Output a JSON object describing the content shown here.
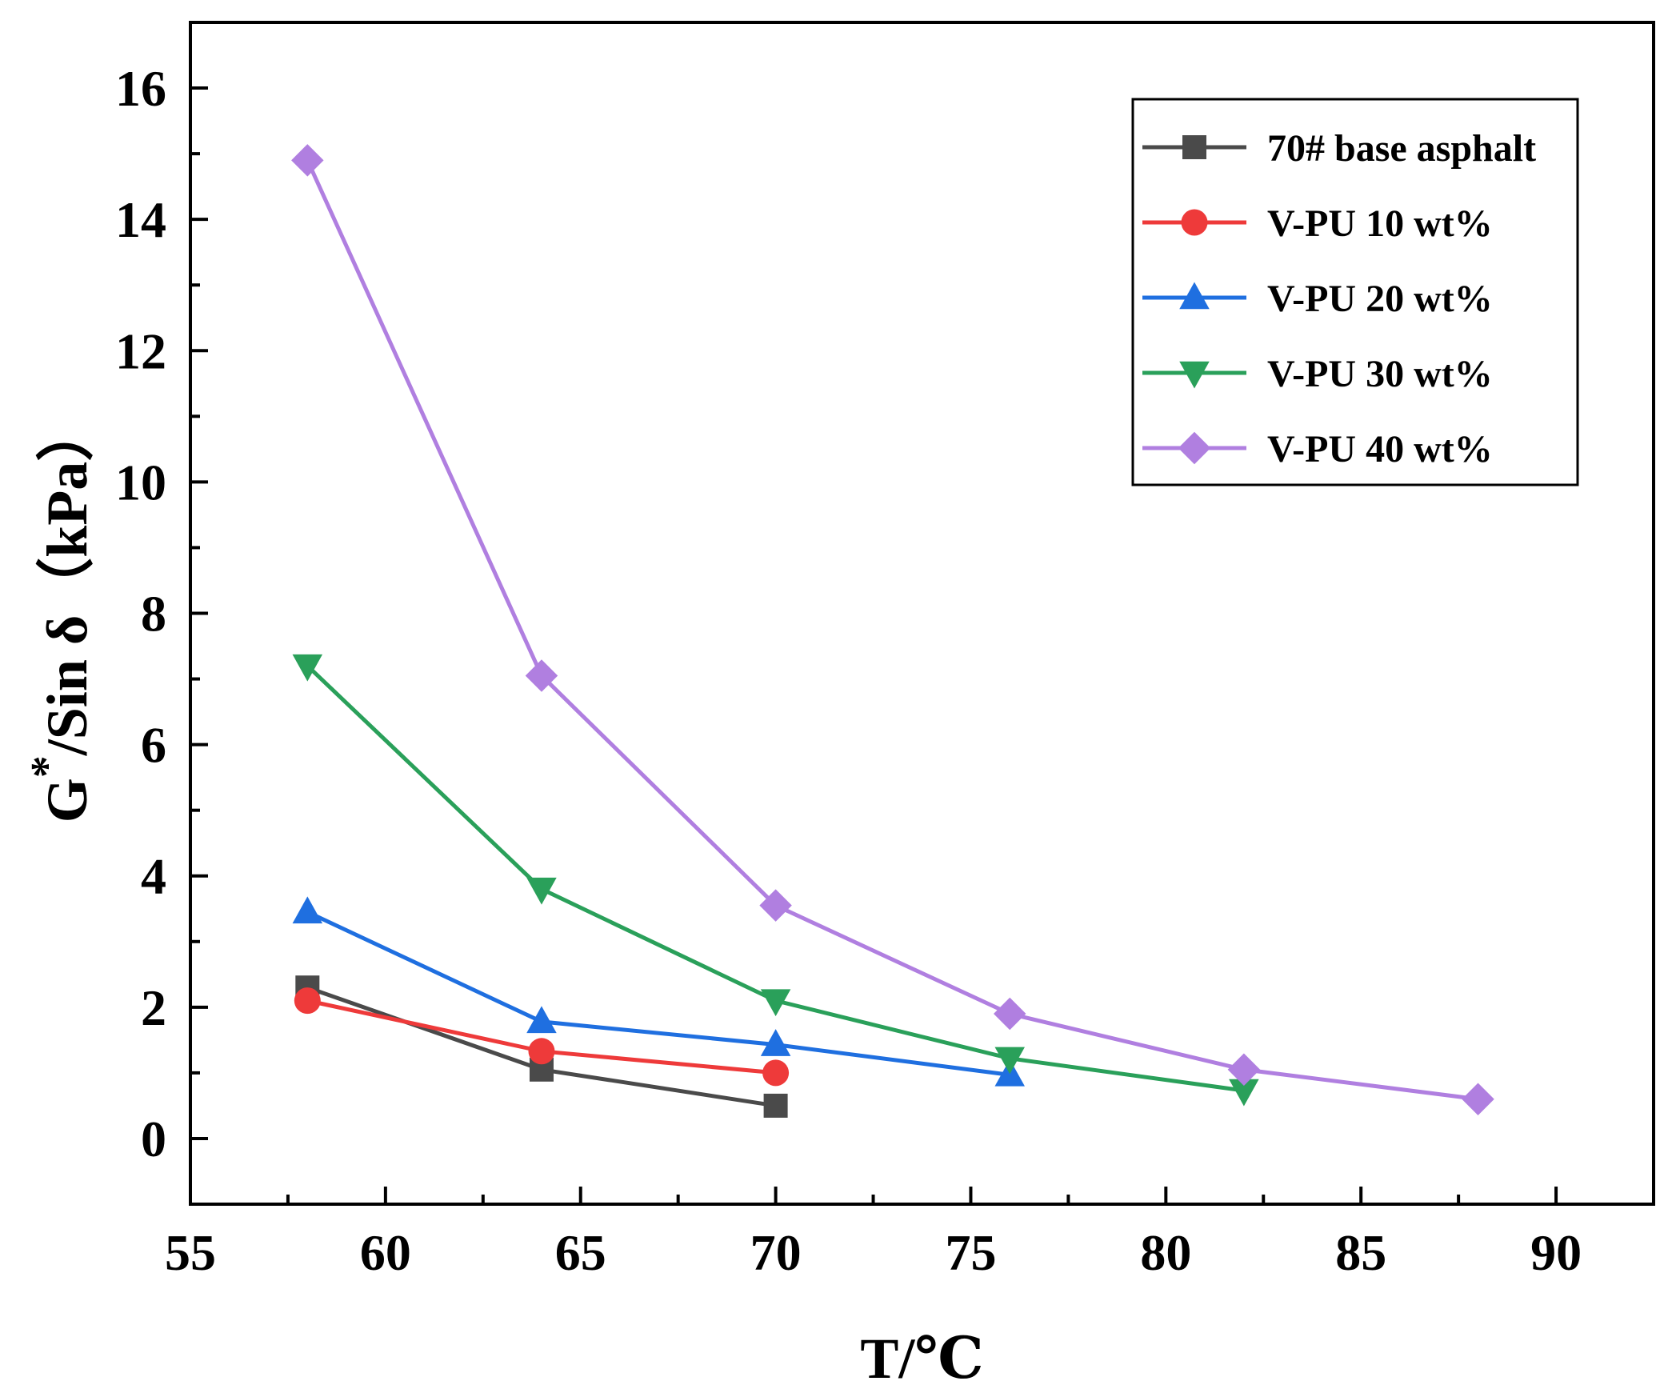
{
  "chart_data": {
    "type": "line",
    "xlabel": "T/℃",
    "ylabel_main": "G",
    "ylabel_sup": "*",
    "ylabel_rest": "/Sin δ（kPa）",
    "xlim": [
      55,
      92.5
    ],
    "ylim": [
      -1,
      17
    ],
    "x_ticks": [
      55,
      60,
      65,
      70,
      75,
      80,
      85,
      90
    ],
    "y_ticks": [
      0,
      2,
      4,
      6,
      8,
      10,
      12,
      14,
      16
    ],
    "legend_position": "top-right",
    "series": [
      {
        "name": "70# base asphalt",
        "color": "#4a4a4a",
        "marker": "square",
        "points": [
          [
            58,
            2.3
          ],
          [
            64,
            1.05
          ],
          [
            70,
            0.5
          ]
        ]
      },
      {
        "name": "V-PU 10 wt%",
        "color": "#ee3a3a",
        "marker": "circle",
        "points": [
          [
            58,
            2.1
          ],
          [
            64,
            1.33
          ],
          [
            70,
            1.0
          ]
        ]
      },
      {
        "name": "V-PU 20 wt%",
        "color": "#1f6fe0",
        "marker": "triangle-up",
        "points": [
          [
            58,
            3.45
          ],
          [
            64,
            1.78
          ],
          [
            70,
            1.43
          ],
          [
            76,
            0.97
          ]
        ]
      },
      {
        "name": "V-PU 30 wt%",
        "color": "#2aa05a",
        "marker": "triangle-down",
        "points": [
          [
            58,
            7.2
          ],
          [
            64,
            3.8
          ],
          [
            70,
            2.1
          ],
          [
            76,
            1.22
          ],
          [
            82,
            0.73
          ]
        ]
      },
      {
        "name": "V-PU 40 wt%",
        "color": "#b07fe0",
        "marker": "diamond",
        "points": [
          [
            58,
            14.9
          ],
          [
            64,
            7.05
          ],
          [
            70,
            3.55
          ],
          [
            76,
            1.9
          ],
          [
            82,
            1.05
          ],
          [
            88,
            0.6
          ]
        ]
      }
    ]
  }
}
